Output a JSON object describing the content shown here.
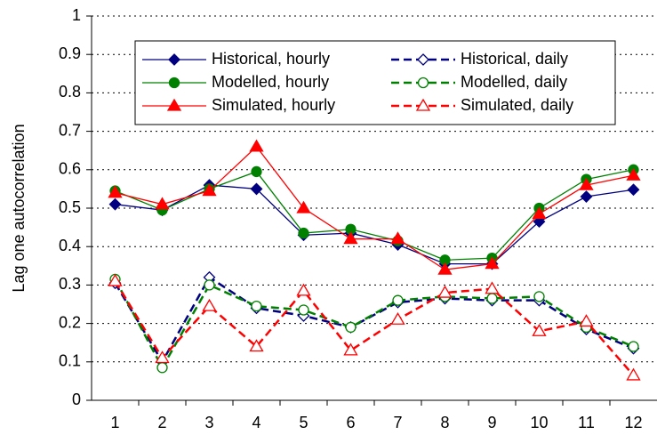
{
  "chart_data": {
    "type": "line",
    "y_label": "Lag one autocorrelation",
    "categories": [
      "1",
      "2",
      "3",
      "4",
      "5",
      "6",
      "7",
      "8",
      "9",
      "10",
      "11",
      "12"
    ],
    "ylim": [
      0,
      1
    ],
    "yticks": [
      0,
      0.1,
      0.2,
      0.3,
      0.4,
      0.5,
      0.6,
      0.7,
      0.8,
      0.9,
      1
    ],
    "grid": true,
    "series": [
      {
        "name": "Historical, hourly",
        "color": "#000080",
        "marker": "diamond",
        "filled": true,
        "dashed": false,
        "values": [
          0.51,
          0.495,
          0.56,
          0.55,
          0.43,
          0.435,
          0.405,
          0.355,
          0.355,
          0.465,
          0.53,
          0.548
        ]
      },
      {
        "name": "Modelled, hourly",
        "color": "#008000",
        "marker": "circle",
        "filled": true,
        "dashed": false,
        "values": [
          0.545,
          0.495,
          0.55,
          0.595,
          0.435,
          0.445,
          0.415,
          0.365,
          0.37,
          0.5,
          0.575,
          0.6
        ]
      },
      {
        "name": "Simulated, hourly",
        "color": "#ff0000",
        "marker": "triangle",
        "filled": true,
        "dashed": false,
        "values": [
          0.54,
          0.51,
          0.545,
          0.66,
          0.5,
          0.42,
          0.42,
          0.34,
          0.355,
          0.485,
          0.56,
          0.585
        ]
      },
      {
        "name": "Historical, daily",
        "color": "#000080",
        "marker": "diamond",
        "filled": false,
        "dashed": true,
        "values": [
          0.305,
          0.1,
          0.32,
          0.24,
          0.22,
          0.19,
          0.255,
          0.265,
          0.26,
          0.26,
          0.185,
          0.135
        ]
      },
      {
        "name": "Modelled, daily",
        "color": "#008000",
        "marker": "circle",
        "filled": false,
        "dashed": true,
        "values": [
          0.315,
          0.085,
          0.3,
          0.245,
          0.235,
          0.19,
          0.26,
          0.27,
          0.265,
          0.27,
          0.19,
          0.14
        ]
      },
      {
        "name": "Simulated, daily",
        "color": "#ff0000",
        "marker": "triangle",
        "filled": false,
        "dashed": true,
        "values": [
          0.31,
          0.11,
          0.245,
          0.14,
          0.285,
          0.13,
          0.21,
          0.28,
          0.29,
          0.18,
          0.205,
          0.065
        ]
      }
    ]
  }
}
